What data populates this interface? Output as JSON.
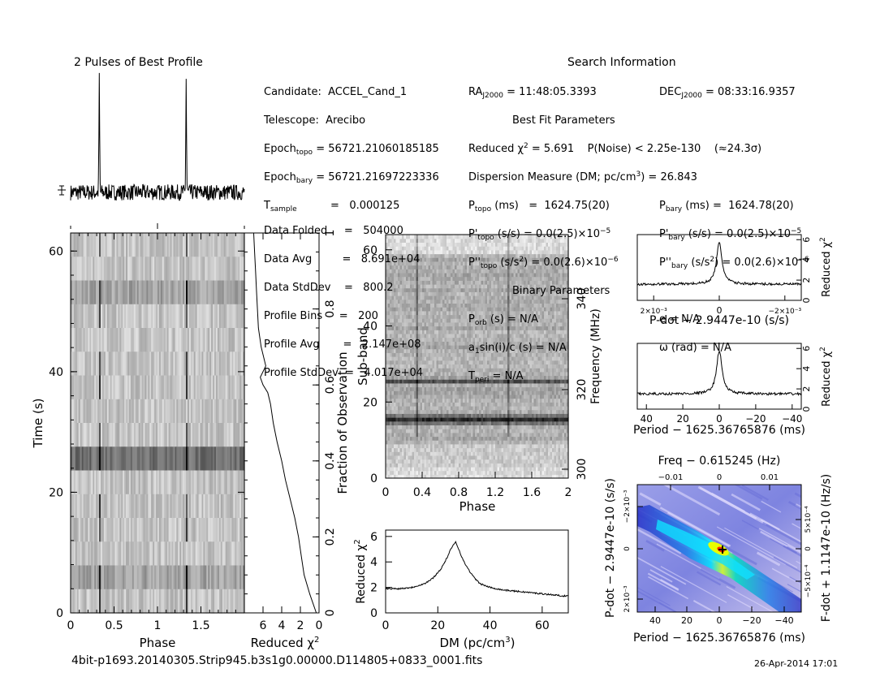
{
  "profile_title": "2 Pulses of Best Profile",
  "search_title": "Search Information",
  "best_fit_title": "Best Fit Parameters",
  "binary_title": "Binary Parameters",
  "info": {
    "candidate": "ACCEL_Cand_1",
    "telescope": "Arecibo",
    "epoch_topo": "56721.21060185185",
    "epoch_bary": "56721.21697223336",
    "t_sample": "0.000125",
    "data_folded": "504000",
    "data_avg": "8.691e+04",
    "data_stddev": "800.2",
    "profile_bins": "200",
    "profile_avg": "2.147e+08",
    "profile_stddev": "4.017e+04",
    "ra": "11:48:05.3393",
    "dec": "08:33:16.9357",
    "reduced_chi2": "5.691",
    "p_noise": "2.25e-130",
    "sigma": "24.3",
    "dm": "26.843",
    "p_topo": "1624.75(20)",
    "p_bary": "1624.78(20)",
    "pd_topo": "0.0(2.5)",
    "pd_bary": "0.0(2.5)",
    "pdd_topo": "0.0(2.6)",
    "pdd_bary": "0.0(2.6)",
    "p_orb": "N/A",
    "e": "N/A",
    "a1sini": "N/A",
    "omega": "N/A",
    "t_peri": "N/A"
  },
  "footer": {
    "filename": "4bit-p1693.20140305.Strip945.b3s1g0.00000.D114805+0833_0001.fits",
    "date": "26-Apr-2014 17:01"
  },
  "labels": {
    "time_axis": "Time (s)",
    "phase": "Phase",
    "reduced_chi2": "Reduced χ",
    "frac_obs": "Fraction of Observation",
    "subband": "Sub-band",
    "frequency": "Frequency (MHz)",
    "dm_axis": "DM (pc/cm",
    "pdot_axis": "P-dot − 2.9447e-10 (s/s)",
    "period_axis": "Period − 1625.36765876 (ms)",
    "freq_axis": "Freq − 0.615245 (Hz)",
    "fdot_axis": "F-dot + 1.1147e-10 (Hz/s)"
  },
  "chart_data": [
    {
      "name": "pulse-profile",
      "type": "line",
      "title": "2 Pulses of Best Profile",
      "x_range": [
        0,
        2
      ],
      "peaks": [
        0.33,
        1.33
      ],
      "peak_height": 1.0,
      "noise_level": 0.07
    },
    {
      "name": "time-phase",
      "type": "heatmap",
      "xlabel": "Phase",
      "ylabel": "Time (s)",
      "x_ticks": [
        "0",
        "0.5",
        "1",
        "1.5"
      ],
      "y_ticks": [
        "0",
        "20",
        "40",
        "60"
      ],
      "xlim": [
        0,
        2
      ],
      "ylim": [
        0,
        63
      ],
      "pulse_phases": [
        0.33,
        1.33
      ]
    },
    {
      "name": "chi2-vs-fraction",
      "type": "line",
      "xlabel": "Reduced χ2",
      "ylabel": "Fraction of Observation",
      "x_ticks": [
        "6",
        "4",
        "2",
        "0"
      ],
      "y_ticks": [
        "0",
        "0.2",
        "0.4",
        "0.6",
        "0.8",
        "1"
      ],
      "fraction": [
        0,
        0.05,
        0.1,
        0.15,
        0.2,
        0.25,
        0.3,
        0.35,
        0.4,
        0.45,
        0.5,
        0.55,
        0.58,
        0.6,
        0.62,
        0.65,
        0.7,
        0.75,
        0.8,
        0.85,
        0.9,
        0.95,
        1.0
      ],
      "chi2": [
        0.3,
        1.0,
        1.6,
        1.9,
        2.2,
        2.6,
        3.1,
        3.6,
        4.0,
        4.5,
        4.9,
        5.2,
        5.5,
        6.0,
        6.3,
        5.7,
        6.2,
        6.5,
        6.6,
        6.7,
        6.8,
        6.9,
        7.0
      ],
      "xlim": [
        8,
        0
      ]
    },
    {
      "name": "subband-phase",
      "type": "heatmap",
      "xlabel": "Phase",
      "ylabel": "Sub-band",
      "y2label": "Frequency (MHz)",
      "x_ticks": [
        "0",
        "0.4",
        "0.8",
        "1.2",
        "1.6",
        "2"
      ],
      "y_ticks": [
        "0",
        "20",
        "40",
        "60"
      ],
      "y2_ticks": [
        "300",
        "320",
        "340"
      ],
      "xlim": [
        0,
        2
      ],
      "ylim": [
        0,
        64
      ],
      "pulse_phases": [
        0.33,
        1.33
      ]
    },
    {
      "name": "dm-chi2",
      "type": "line",
      "xlabel": "DM (pc/cm3)",
      "ylabel": "Reduced χ2",
      "x": [
        0,
        5,
        10,
        15,
        18,
        21,
        23,
        25,
        26.843,
        28,
        30,
        33,
        36,
        40,
        45,
        50,
        55,
        60,
        65,
        70
      ],
      "y": [
        1.9,
        1.9,
        2.0,
        2.3,
        2.7,
        3.4,
        4.1,
        5.0,
        5.6,
        5.0,
        4.0,
        3.0,
        2.3,
        2.0,
        1.8,
        1.7,
        1.6,
        1.5,
        1.4,
        1.3
      ],
      "xlim": [
        0,
        70
      ],
      "ylim": [
        0,
        6.5
      ]
    },
    {
      "name": "pdot-chi2",
      "type": "line",
      "xlabel": "P-dot − 2.9447e-10 (s/s)",
      "ylabel": "Reduced χ2",
      "x_ticks": [
        "2×10⁻³",
        "0",
        "−2×10⁻³"
      ],
      "y_ticks": [
        "0",
        "2",
        "4",
        "6"
      ],
      "xlim": [
        0.0025,
        -0.0025
      ],
      "ylim": [
        0,
        6.5
      ],
      "peak": 0,
      "peak_value": 5.7,
      "baseline": 1.6
    },
    {
      "name": "period-chi2",
      "type": "line",
      "xlabel": "Period − 1625.36765876 (ms)",
      "ylabel": "Reduced χ2",
      "x_ticks": [
        "40",
        "20",
        "0",
        "−20",
        "−40"
      ],
      "y_ticks": [
        "0",
        "2",
        "4",
        "6"
      ],
      "xlim": [
        45,
        -45
      ],
      "ylim": [
        0,
        6.5
      ],
      "peak": 0,
      "peak_value": 5.8,
      "baseline": 1.5
    },
    {
      "name": "period-pdot",
      "type": "heatmap",
      "xlabel": "Period − 1625.36765876 (ms)",
      "ylabel": "P-dot − 2.9447e-10 (s/s)",
      "x2label": "Freq − 0.615245 (Hz)",
      "y2label": "F-dot + 1.1147e-10 (Hz/s)",
      "x_ticks": [
        "40",
        "20",
        "0",
        "−20",
        "−40"
      ],
      "x2_ticks": [
        "−0.01",
        "0",
        "0.01"
      ],
      "y_ticks": [
        "2×10⁻³",
        "0",
        "−2×10⁻³"
      ],
      "y2_ticks": [
        "−5×10⁻⁴",
        "0",
        "5×10⁻⁴"
      ],
      "colors": [
        "#0000a0",
        "#0060ff",
        "#00e0ff",
        "#40ff80",
        "#ffff00",
        "#ff4000",
        "#e0e0ff"
      ]
    }
  ]
}
